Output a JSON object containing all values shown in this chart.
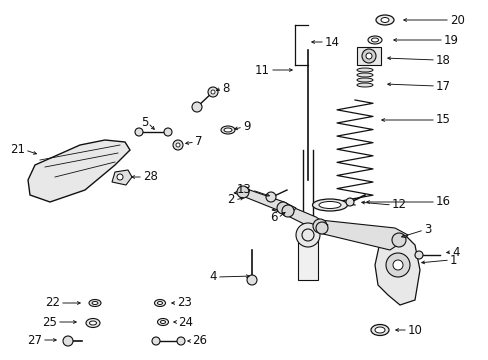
{
  "bg_color": "#ffffff",
  "line_color": "#000000",
  "figsize": [
    4.89,
    3.6
  ],
  "dpi": 100,
  "label_fontsize": 8.5,
  "label_color": "#111111"
}
